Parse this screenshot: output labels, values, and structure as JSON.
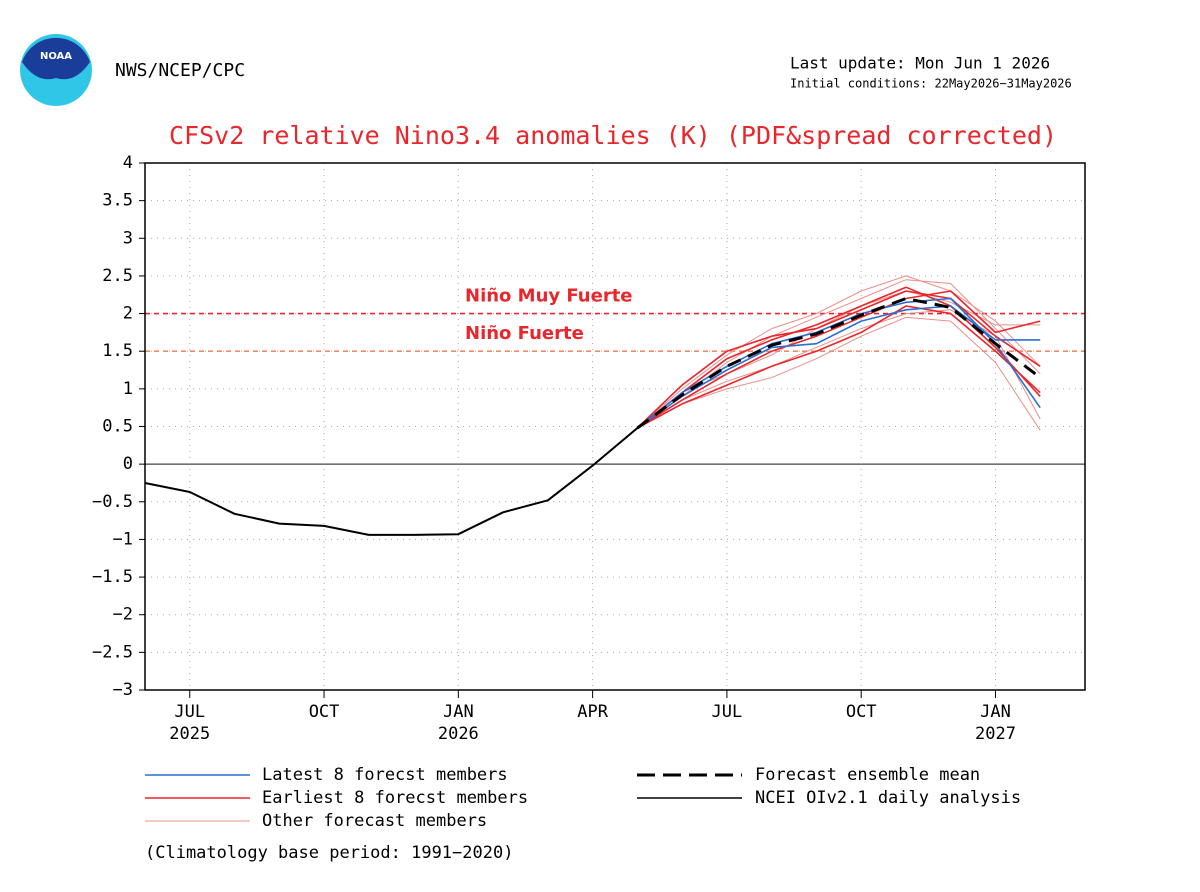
{
  "header": {
    "agency": "NWS/NCEP/CPC",
    "last_update": "Last update: Mon Jun 1 2026",
    "initial_conditions": "Initial conditions: 22May2026−31May2026"
  },
  "footnote": "(Climatology base period: 1991−2020)",
  "chart_data": {
    "type": "line",
    "title": "CFSv2 relative Nino3.4 anomalies (K) (PDF&spread corrected)",
    "x": [
      "2025-06",
      "2025-07",
      "2025-08",
      "2025-09",
      "2025-10",
      "2025-11",
      "2025-12",
      "2026-01",
      "2026-02",
      "2026-03",
      "2026-04",
      "2026-05",
      "2026-06",
      "2026-07",
      "2026-08",
      "2026-09",
      "2026-10",
      "2026-11",
      "2026-12",
      "2027-01",
      "2027-02"
    ],
    "xlim": [
      "2025-06",
      "2027-03"
    ],
    "xticks": [
      {
        "value": "2025-07",
        "label": "JUL"
      },
      {
        "value": "2025-10",
        "label": "OCT"
      },
      {
        "value": "2026-01",
        "label": "JAN"
      },
      {
        "value": "2026-04",
        "label": "APR"
      },
      {
        "value": "2026-07",
        "label": "JUL"
      },
      {
        "value": "2026-10",
        "label": "OCT"
      },
      {
        "value": "2027-01",
        "label": "JAN"
      }
    ],
    "xtick_years": [
      {
        "value": "2025-07",
        "label": "2025"
      },
      {
        "value": "2026-01",
        "label": "2026"
      },
      {
        "value": "2027-01",
        "label": "2027"
      }
    ],
    "ylim": [
      -3,
      4
    ],
    "yticks": [
      {
        "value": -3,
        "label": "−3"
      },
      {
        "value": -2.5,
        "label": "−2.5"
      },
      {
        "value": -2,
        "label": "−2"
      },
      {
        "value": -1.5,
        "label": "−1.5"
      },
      {
        "value": -1,
        "label": "−1"
      },
      {
        "value": -0.5,
        "label": "−0.5"
      },
      0,
      0.5,
      1,
      1.5,
      2,
      2.5,
      3,
      3.5,
      4
    ],
    "grid": true,
    "reference_lines": [
      {
        "label": "Niño Muy Fuerte",
        "value": 2,
        "color": "#e8262b"
      },
      {
        "label": "Niño Fuerte",
        "value": 1.5,
        "color": "#f08a6a"
      }
    ],
    "series": [
      {
        "name": "Latest 8 forecst members",
        "color": "#2a6fd0",
        "members": [
          [
            null,
            null,
            null,
            null,
            null,
            null,
            null,
            null,
            null,
            null,
            null,
            0.48,
            0.9,
            1.25,
            1.55,
            1.6,
            1.9,
            2.05,
            2.1,
            1.65,
            1.65
          ],
          [
            null,
            null,
            null,
            null,
            null,
            null,
            null,
            null,
            null,
            null,
            null,
            0.48,
            0.95,
            1.3,
            1.6,
            1.75,
            2.0,
            2.15,
            2.2,
            1.6,
            0.75
          ]
        ]
      },
      {
        "name": "Earliest 8 forecst members",
        "color": "#e8262b",
        "members": [
          [
            null,
            null,
            null,
            null,
            null,
            null,
            null,
            null,
            null,
            null,
            null,
            0.48,
            1.05,
            1.5,
            1.7,
            1.8,
            2.05,
            2.3,
            2.2,
            1.7,
            1.3
          ],
          [
            null,
            null,
            null,
            null,
            null,
            null,
            null,
            null,
            null,
            null,
            null,
            0.48,
            0.95,
            1.4,
            1.65,
            1.85,
            2.1,
            2.35,
            2.1,
            1.55,
            0.9
          ],
          [
            null,
            null,
            null,
            null,
            null,
            null,
            null,
            null,
            null,
            null,
            null,
            0.48,
            0.85,
            1.2,
            1.5,
            1.7,
            1.95,
            2.2,
            2.3,
            1.75,
            1.9
          ],
          [
            null,
            null,
            null,
            null,
            null,
            null,
            null,
            null,
            null,
            null,
            null,
            0.48,
            0.8,
            1.05,
            1.3,
            1.5,
            1.75,
            2.1,
            2.0,
            1.5,
            0.95
          ]
        ]
      },
      {
        "name": "Other forecast members",
        "color": "#e8908a",
        "members": [
          [
            null,
            null,
            null,
            null,
            null,
            null,
            null,
            null,
            null,
            null,
            null,
            0.48,
            0.9,
            1.35,
            1.7,
            1.95,
            2.2,
            2.45,
            2.4,
            1.8,
            1.2
          ],
          [
            null,
            null,
            null,
            null,
            null,
            null,
            null,
            null,
            null,
            null,
            null,
            0.48,
            0.8,
            1.0,
            1.15,
            1.4,
            1.7,
            1.95,
            1.9,
            1.35,
            0.45
          ],
          [
            null,
            null,
            null,
            null,
            null,
            null,
            null,
            null,
            null,
            null,
            null,
            0.48,
            1.0,
            1.45,
            1.8,
            2.0,
            2.3,
            2.5,
            2.3,
            1.9,
            1.3
          ],
          [
            null,
            null,
            null,
            null,
            null,
            null,
            null,
            null,
            null,
            null,
            null,
            0.48,
            0.85,
            1.1,
            1.3,
            1.55,
            1.8,
            2.0,
            2.05,
            1.7,
            0.6
          ],
          [
            null,
            null,
            null,
            null,
            null,
            null,
            null,
            null,
            null,
            null,
            null,
            0.48,
            0.95,
            1.2,
            1.45,
            1.8,
            2.1,
            2.3,
            2.15,
            1.85,
            1.85
          ]
        ]
      },
      {
        "name": "Forecast ensemble mean",
        "color": "#000000",
        "dashed": true,
        "values": [
          null,
          null,
          null,
          null,
          null,
          null,
          null,
          null,
          null,
          null,
          null,
          0.48,
          0.92,
          1.3,
          1.58,
          1.73,
          1.98,
          2.2,
          2.08,
          1.6,
          1.15
        ]
      },
      {
        "name": "NCEI OIv2.1 daily analysis",
        "color": "#000000",
        "values": [
          -0.25,
          -0.37,
          -0.66,
          -0.79,
          -0.82,
          -0.94,
          -0.94,
          -0.93,
          -0.64,
          -0.48,
          -0.02,
          0.48,
          null,
          null,
          null,
          null,
          null,
          null,
          null,
          null,
          null
        ]
      }
    ]
  }
}
